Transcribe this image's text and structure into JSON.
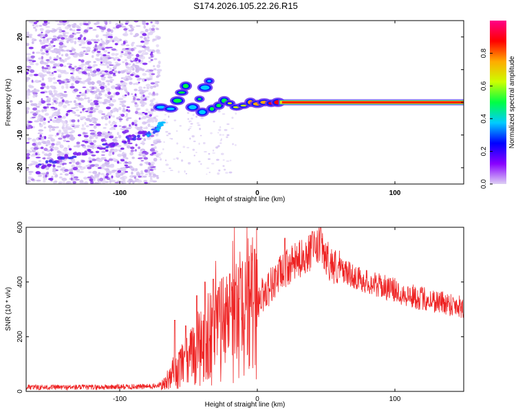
{
  "figure": {
    "title": "S174.2026.105.22.26.R15"
  },
  "chart_data": [
    {
      "type": "heatmap",
      "name": "spectrogram",
      "xlabel": "Height of straight line (km)",
      "ylabel": "Frequency (Hz)",
      "xlim": [
        -168,
        150
      ],
      "ylim": [
        -25,
        25
      ],
      "xticks": [
        -100,
        0,
        100
      ],
      "yticks": [
        -20,
        -10,
        0,
        10,
        20
      ],
      "colorbar": {
        "label": "Normalized spectral amplitude",
        "range": [
          0,
          1
        ],
        "ticks": [
          "0.0",
          "0.2",
          "0.4",
          "0.6",
          "0.8"
        ],
        "tick_values": [
          0,
          0.2,
          0.4,
          0.6,
          0.8
        ],
        "colors": [
          "#ddd0f4",
          "#8800ff",
          "#0000ff",
          "#00ccff",
          "#00ff44",
          "#ccff00",
          "#ffaa00",
          "#ff0000",
          "#ff0088"
        ]
      },
      "carrier": {
        "freq_hz": 0,
        "start_km": 18,
        "end_km": 150,
        "color": "#ff1a00",
        "edge_color": "#00ddbb"
      },
      "noise_region_km": [
        -168,
        -75
      ],
      "descending_trace": {
        "x_km": [
          -160,
          -140,
          -120,
          -100,
          -85,
          -75,
          -68
        ],
        "freq_hz": [
          -20,
          -17,
          -15,
          -12,
          -10,
          -9,
          -6
        ]
      },
      "transition_points": [
        {
          "x": -70,
          "f": -1.5,
          "a": 0.25
        },
        {
          "x": -63,
          "f": -2,
          "a": 0.3
        },
        {
          "x": -58,
          "f": 0.5,
          "a": 0.35
        },
        {
          "x": -55,
          "f": 3,
          "a": 0.4
        },
        {
          "x": -52,
          "f": 5,
          "a": 0.35
        },
        {
          "x": -47,
          "f": -1.5,
          "a": 0.3
        },
        {
          "x": -42,
          "f": 1,
          "a": 0.35
        },
        {
          "x": -38,
          "f": 4.5,
          "a": 0.3
        },
        {
          "x": -35,
          "f": 6.5,
          "a": 0.3
        },
        {
          "x": -40,
          "f": -3,
          "a": 0.3
        },
        {
          "x": -33,
          "f": -2,
          "a": 0.35
        },
        {
          "x": -28,
          "f": -1,
          "a": 0.4
        },
        {
          "x": -24,
          "f": 0.5,
          "a": 0.45
        },
        {
          "x": -20,
          "f": -0.3,
          "a": 0.5
        },
        {
          "x": -15,
          "f": -1.5,
          "a": 0.5
        },
        {
          "x": -10,
          "f": -1,
          "a": 0.55
        },
        {
          "x": -5,
          "f": 0,
          "a": 0.6
        },
        {
          "x": 0,
          "f": -0.5,
          "a": 0.65
        },
        {
          "x": 5,
          "f": 0,
          "a": 0.7
        },
        {
          "x": 10,
          "f": -0.3,
          "a": 0.75
        },
        {
          "x": 15,
          "f": 0,
          "a": 0.8
        }
      ]
    },
    {
      "type": "line",
      "name": "snr",
      "xlabel": "Height of straight line (km)",
      "ylabel": "SNR (10 * v/v)",
      "xlim": [
        -168,
        150
      ],
      "ylim": [
        0,
        600
      ],
      "xticks": [
        -100,
        0,
        100
      ],
      "yticks": [
        0,
        200,
        400,
        600
      ],
      "series": [
        {
          "name": "SNR",
          "color": "#ee2222",
          "envelope": {
            "x": [
              -168,
              -120,
              -80,
              -70,
              -65,
              -60,
              -55,
              -50,
              -45,
              -40,
              -35,
              -30,
              -25,
              -20,
              -15,
              -10,
              -5,
              0,
              5,
              10,
              15,
              20,
              25,
              30,
              35,
              40,
              45,
              50,
              55,
              60,
              70,
              80,
              90,
              100,
              110,
              120,
              130,
              140,
              150
            ],
            "y": [
              15,
              15,
              18,
              20,
              35,
              60,
              90,
              110,
              150,
              170,
              190,
              210,
              230,
              250,
              270,
              285,
              305,
              330,
              360,
              390,
              420,
              445,
              465,
              480,
              500,
              510,
              530,
              490,
              460,
              450,
              420,
              400,
              385,
              370,
              350,
              340,
              330,
              320,
              310
            ]
          },
          "spikes": [
            {
              "x": -60,
              "y": 260
            },
            {
              "x": -52,
              "y": 240
            },
            {
              "x": -44,
              "y": 350
            },
            {
              "x": -38,
              "y": 400
            },
            {
              "x": -32,
              "y": 410
            },
            {
              "x": -28,
              "y": 380
            },
            {
              "x": -20,
              "y": 430
            },
            {
              "x": -12,
              "y": 450
            },
            {
              "x": -2,
              "y": 520
            },
            {
              "x": 20,
              "y": 560
            },
            {
              "x": 40,
              "y": 585
            },
            {
              "x": 46,
              "y": 600
            }
          ]
        }
      ]
    }
  ]
}
